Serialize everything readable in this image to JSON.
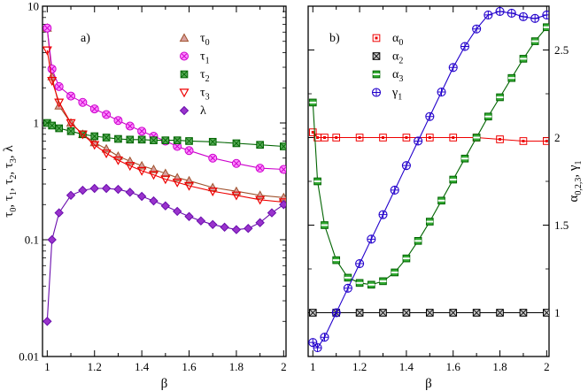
{
  "chart_data": [
    {
      "id": "a",
      "type": "scatter",
      "panel_label": "a)",
      "xlabel": "β",
      "ylabel": "τ0, τ1, τ2, τ3, λ",
      "ylabel_parts": [
        [
          "τ",
          "0"
        ],
        [
          ", τ",
          "1"
        ],
        [
          ", τ",
          "2"
        ],
        [
          ", τ",
          "3"
        ],
        [
          ", λ",
          ""
        ]
      ],
      "xlim": [
        0.98,
        2.01
      ],
      "ylim": [
        0.01,
        10
      ],
      "yscale": "log",
      "xticks": [
        1,
        1.2,
        1.4,
        1.6,
        1.8,
        2
      ],
      "xtick_labels": [
        "1",
        "1.2",
        "1.4",
        "1.6",
        "1.8",
        "2"
      ],
      "yticks": [
        0.01,
        0.1,
        1,
        10
      ],
      "ytick_labels": [
        "0.01",
        "0.1",
        "1",
        "10"
      ],
      "legend_position": "top-right",
      "series": [
        {
          "name": "τ0",
          "base": "τ",
          "sub": "0",
          "marker": "triangle-up",
          "color": "#a0522d",
          "fill": "#d8a0a0",
          "x": [
            1.0,
            1.02,
            1.05,
            1.1,
            1.15,
            1.2,
            1.25,
            1.3,
            1.35,
            1.4,
            1.45,
            1.5,
            1.55,
            1.6,
            1.7,
            1.8,
            1.9,
            2.0
          ],
          "y": [
            6.5,
            2.5,
            1.4,
            1.0,
            0.8,
            0.68,
            0.6,
            0.52,
            0.47,
            0.43,
            0.4,
            0.37,
            0.34,
            0.32,
            0.28,
            0.26,
            0.24,
            0.23
          ]
        },
        {
          "name": "τ1",
          "base": "τ",
          "sub": "1",
          "marker": "circle-x",
          "color": "#cc00cc",
          "fill": "#ff88ff",
          "x": [
            1.0,
            1.02,
            1.05,
            1.1,
            1.15,
            1.2,
            1.25,
            1.3,
            1.35,
            1.4,
            1.45,
            1.5,
            1.55,
            1.6,
            1.7,
            1.8,
            1.9,
            2.0
          ],
          "y": [
            6.5,
            2.9,
            2.05,
            1.7,
            1.5,
            1.32,
            1.18,
            1.05,
            0.94,
            0.85,
            0.77,
            0.7,
            0.63,
            0.58,
            0.5,
            0.45,
            0.41,
            0.4
          ]
        },
        {
          "name": "τ2",
          "base": "τ",
          "sub": "2",
          "marker": "square-x",
          "color": "#006400",
          "fill": "#55aa55",
          "x": [
            1.0,
            1.02,
            1.05,
            1.1,
            1.15,
            1.2,
            1.25,
            1.3,
            1.35,
            1.4,
            1.45,
            1.5,
            1.55,
            1.6,
            1.7,
            1.8,
            1.9,
            2.0
          ],
          "y": [
            1.0,
            0.95,
            0.9,
            0.85,
            0.8,
            0.77,
            0.75,
            0.73,
            0.72,
            0.72,
            0.71,
            0.71,
            0.71,
            0.7,
            0.69,
            0.67,
            0.65,
            0.63
          ]
        },
        {
          "name": "τ3",
          "base": "τ",
          "sub": "3",
          "marker": "triangle-down",
          "color": "#ee0000",
          "fill": "none",
          "x": [
            1.0,
            1.02,
            1.05,
            1.1,
            1.15,
            1.2,
            1.25,
            1.3,
            1.35,
            1.4,
            1.45,
            1.5,
            1.55,
            1.6,
            1.7,
            1.8,
            1.9,
            2.0
          ],
          "y": [
            4.2,
            2.3,
            1.5,
            1.0,
            0.8,
            0.65,
            0.55,
            0.48,
            0.43,
            0.39,
            0.36,
            0.33,
            0.31,
            0.29,
            0.26,
            0.24,
            0.22,
            0.21
          ]
        },
        {
          "name": "λ",
          "base": "λ",
          "sub": "",
          "marker": "diamond",
          "color": "#6a0dad",
          "fill": "#9933cc",
          "x": [
            1.0,
            1.02,
            1.05,
            1.1,
            1.15,
            1.2,
            1.25,
            1.3,
            1.35,
            1.4,
            1.45,
            1.5,
            1.55,
            1.6,
            1.65,
            1.7,
            1.75,
            1.8,
            1.85,
            1.9,
            1.95,
            2.0
          ],
          "y": [
            0.02,
            0.1,
            0.17,
            0.24,
            0.265,
            0.275,
            0.275,
            0.27,
            0.255,
            0.235,
            0.215,
            0.195,
            0.175,
            0.158,
            0.145,
            0.135,
            0.128,
            0.122,
            0.125,
            0.14,
            0.17,
            0.2
          ]
        }
      ]
    },
    {
      "id": "b",
      "type": "scatter",
      "panel_label": "b)",
      "xlabel": "β",
      "ylabel": "α0,2,3, γ1",
      "ylabel_parts": [
        [
          "α",
          "0,2,3"
        ],
        [
          ", γ",
          "1"
        ]
      ],
      "xlim": [
        0.98,
        2.01
      ],
      "ylim": [
        0.75,
        2.75
      ],
      "yscale": "linear",
      "xticks": [
        1,
        1.2,
        1.4,
        1.6,
        1.8,
        2
      ],
      "xtick_labels": [
        "1",
        "1.2",
        "1.4",
        "1.6",
        "1.8",
        "2"
      ],
      "yticks": [
        1,
        1.5,
        2,
        2.5
      ],
      "ytick_labels": [
        "1",
        "1.5",
        "2",
        "2.5"
      ],
      "ytick_side": "right",
      "legend_position": "top-left",
      "series": [
        {
          "name": "α0",
          "base": "α",
          "sub": "0",
          "marker": "square-dot",
          "color": "#ee0000",
          "fill": "#ff9999",
          "x": [
            1.0,
            1.02,
            1.05,
            1.1,
            1.2,
            1.3,
            1.4,
            1.5,
            1.6,
            1.7,
            1.8,
            1.9,
            2.0
          ],
          "y": [
            2.03,
            2.0,
            2.0,
            2.0,
            2.0,
            2.0,
            2.0,
            2.0,
            2.0,
            2.0,
            1.99,
            1.98,
            1.98
          ]
        },
        {
          "name": "α2",
          "base": "α",
          "sub": "2",
          "marker": "square-x",
          "color": "#000000",
          "fill": "#cccccc",
          "x": [
            1.0,
            1.1,
            1.2,
            1.3,
            1.4,
            1.5,
            1.6,
            1.7,
            1.8,
            1.9,
            2.0
          ],
          "y": [
            1.0,
            1.0,
            1.0,
            1.0,
            1.0,
            1.0,
            1.0,
            1.0,
            1.0,
            1.0,
            1.0
          ]
        },
        {
          "name": "α3",
          "base": "α",
          "sub": "3",
          "marker": "square-bar",
          "color": "#006400",
          "fill": "#33aa33",
          "x": [
            1.0,
            1.02,
            1.05,
            1.1,
            1.15,
            1.2,
            1.25,
            1.3,
            1.35,
            1.4,
            1.45,
            1.5,
            1.55,
            1.6,
            1.65,
            1.7,
            1.75,
            1.8,
            1.85,
            1.9,
            1.95,
            2.0
          ],
          "y": [
            2.2,
            1.75,
            1.5,
            1.3,
            1.2,
            1.17,
            1.16,
            1.18,
            1.23,
            1.31,
            1.41,
            1.52,
            1.64,
            1.76,
            1.88,
            2.0,
            2.12,
            2.23,
            2.34,
            2.45,
            2.55,
            2.63
          ]
        },
        {
          "name": "γ1",
          "base": "γ",
          "sub": "1",
          "marker": "circle-plus",
          "color": "#2200cc",
          "fill": "#6666ff",
          "x": [
            1.0,
            1.02,
            1.05,
            1.1,
            1.15,
            1.2,
            1.25,
            1.3,
            1.35,
            1.4,
            1.45,
            1.5,
            1.55,
            1.6,
            1.65,
            1.7,
            1.75,
            1.8,
            1.85,
            1.9,
            1.95,
            2.0
          ],
          "y": [
            0.83,
            0.8,
            0.86,
            1.0,
            1.14,
            1.28,
            1.42,
            1.56,
            1.7,
            1.84,
            1.98,
            2.12,
            2.26,
            2.4,
            2.52,
            2.62,
            2.7,
            2.72,
            2.71,
            2.69,
            2.68,
            2.7
          ]
        }
      ]
    }
  ]
}
